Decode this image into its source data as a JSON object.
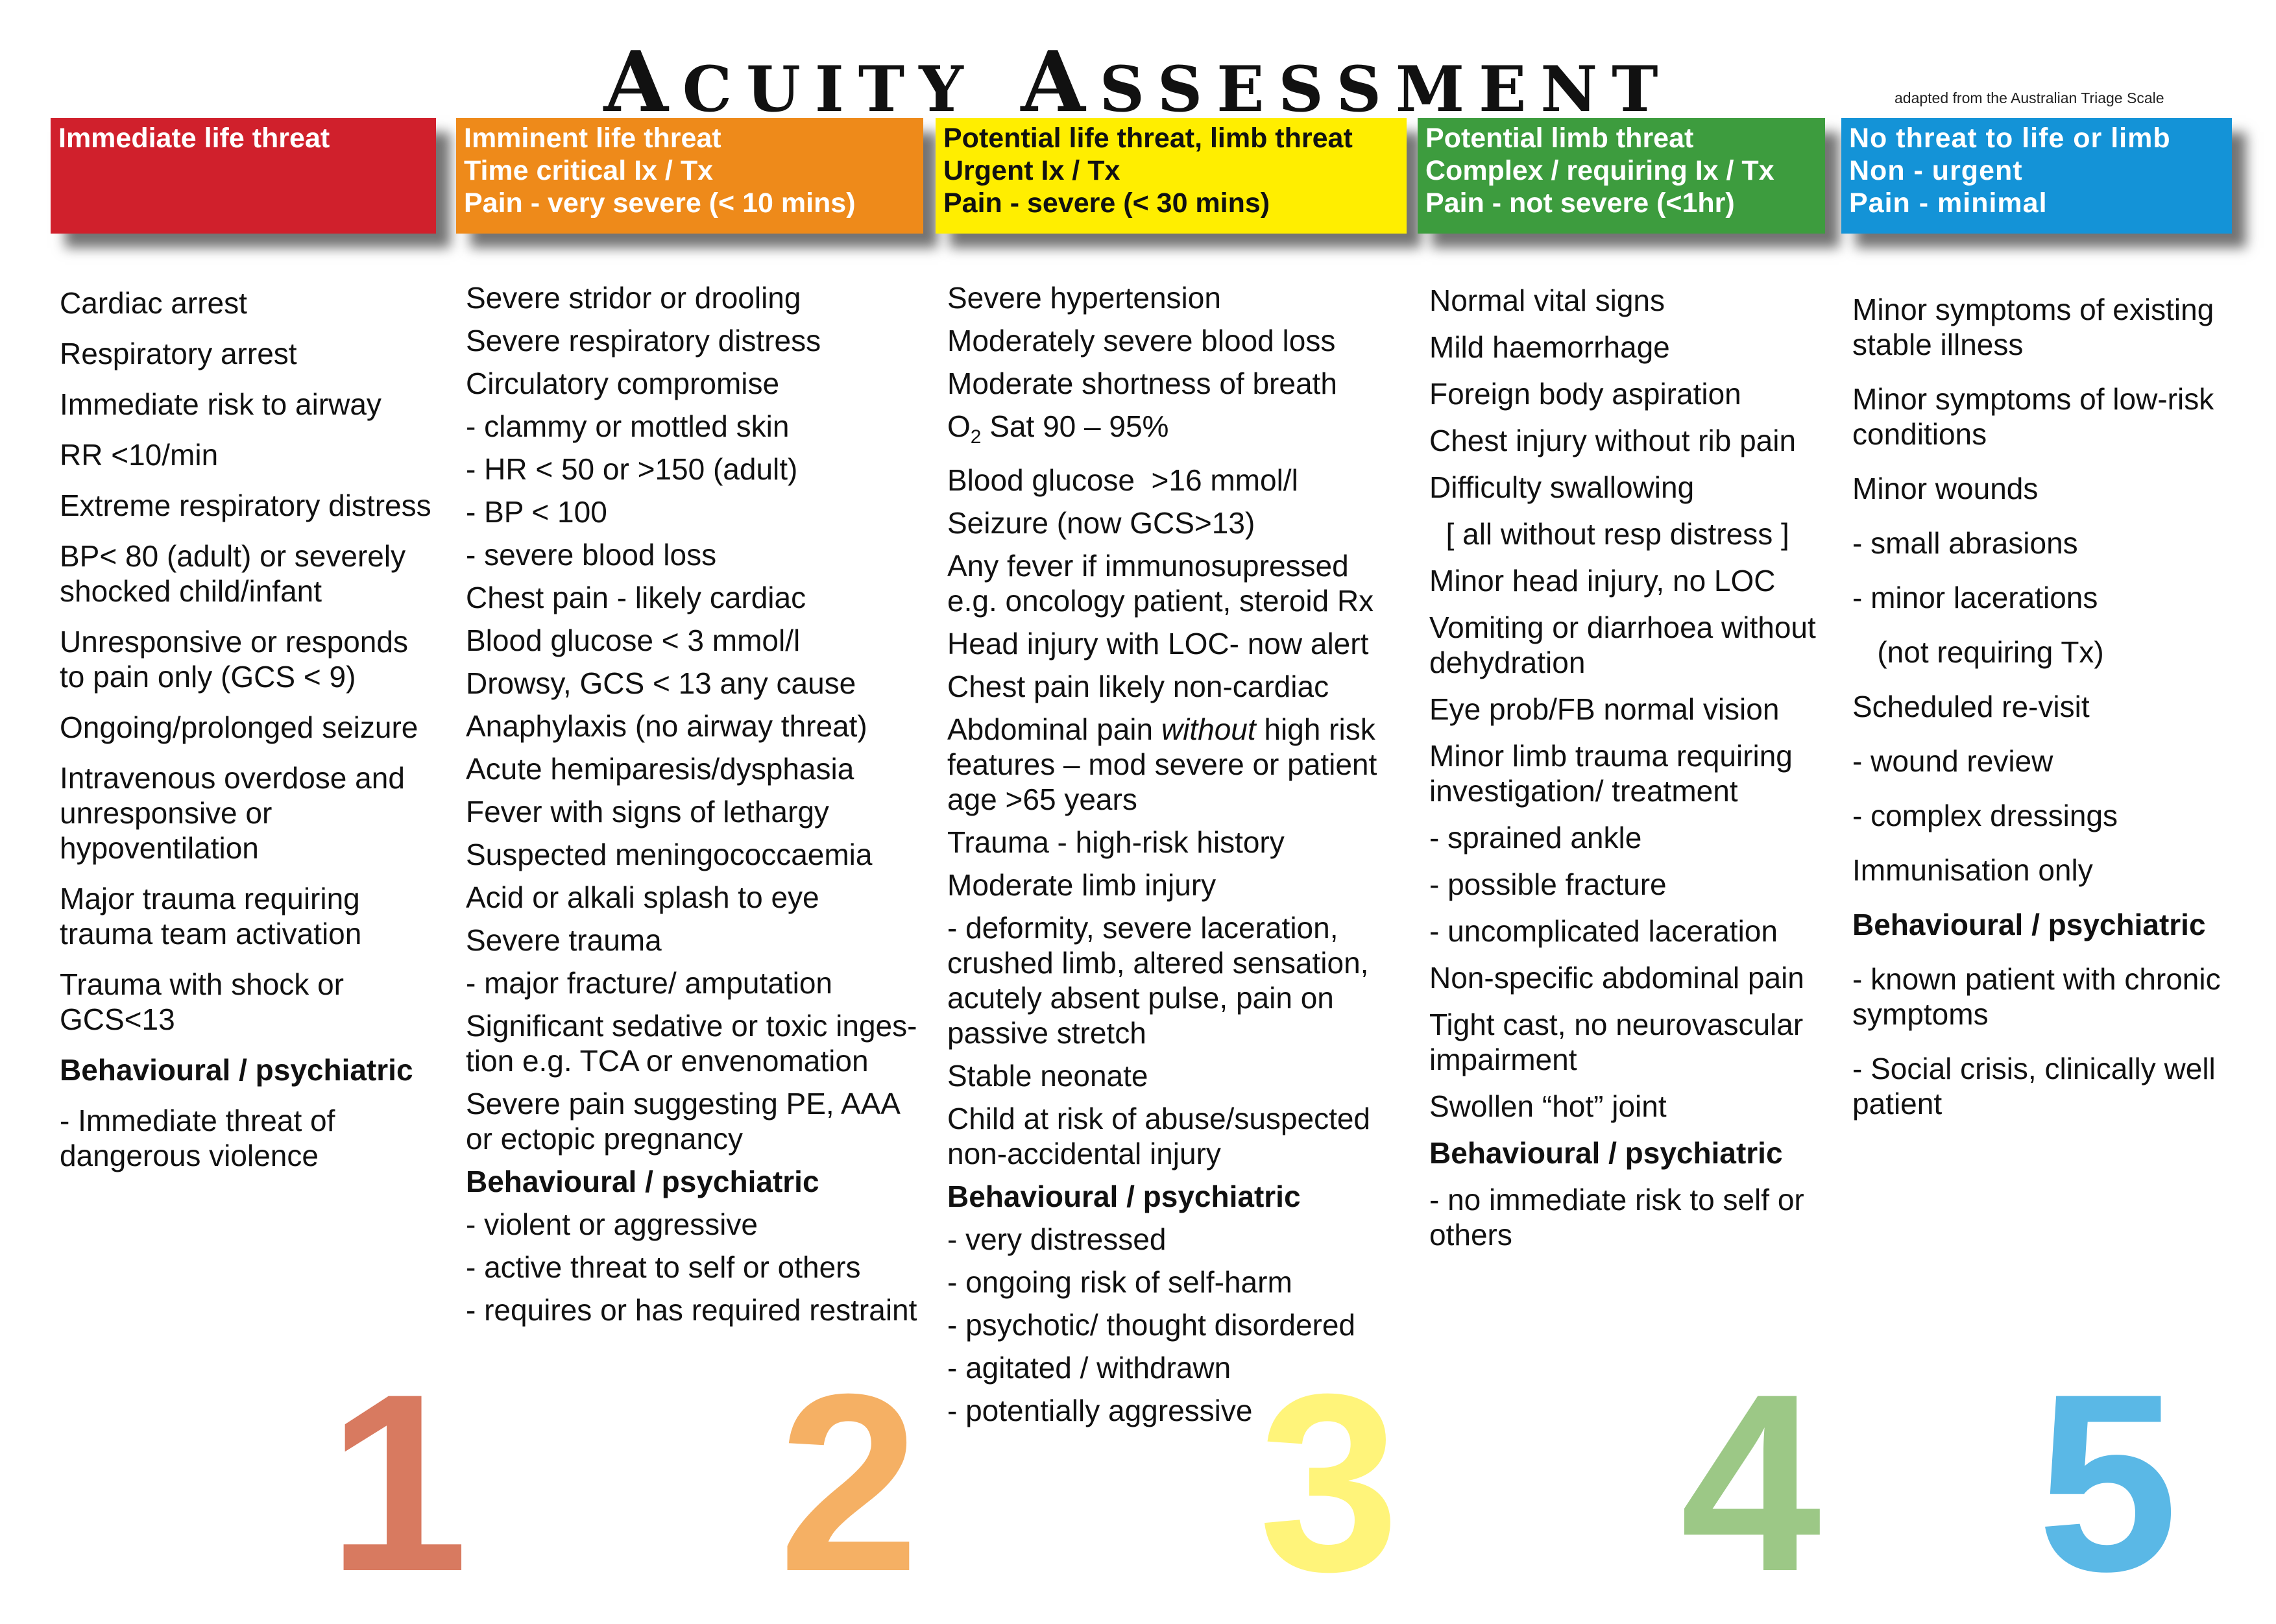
{
  "title": {
    "first_initial": "A",
    "first_rest": "CUITY",
    "second_initial": "A",
    "second_rest": "SSESSMENT"
  },
  "credit": "adapted from the Australian Triage Scale",
  "colors": {
    "cat1": "#d0202c",
    "cat2": "#ee8a1a",
    "cat3": "#ffee00",
    "cat4": "#3d9c3e",
    "cat5": "#1493d7"
  },
  "categories": [
    {
      "number": "1",
      "header": [
        "Immediate life threat"
      ],
      "items": [
        "Cardiac arrest",
        "Respiratory arrest",
        "Immediate risk to airway",
        "RR <10/min",
        "Extreme respiratory distress",
        "BP< 80 (adult) or severely\nshocked child/infant",
        "Unresponsive or responds\nto pain only (GCS < 9)",
        "Ongoing/prolonged seizure",
        "Intravenous overdose and\nunresponsive or\nhypoventilation",
        "Major trauma requiring\ntrauma team activation",
        "Trauma with shock or\nGCS<13",
        "Behavioural / psychiatric",
        "- Immediate threat of\ndangerous violence"
      ]
    },
    {
      "number": "2",
      "header": [
        "Imminent life threat",
        "Time critical Ix / Tx",
        "Pain - very severe (< 10 mins)"
      ],
      "items": [
        "Severe stridor or drooling",
        "Severe respiratory distress",
        "Circulatory compromise",
        "- clammy or mottled skin",
        "- HR < 50 or >150 (adult)",
        "- BP < 100",
        "- severe blood loss",
        "Chest pain - likely cardiac",
        "Blood glucose < 3 mmol/l",
        "Drowsy, GCS < 13 any cause",
        "Anaphylaxis (no airway threat)",
        "Acute hemiparesis/dysphasia",
        "Fever with signs of lethargy",
        "Suspected meningococcaemia",
        "Acid or alkali splash to eye",
        "Severe trauma",
        "- major fracture/ amputation",
        "Significant sedative or toxic inges-\ntion e.g. TCA or envenomation",
        "Severe pain suggesting PE, AAA\nor ectopic pregnancy",
        "Behavioural / psychiatric",
        "- violent or aggressive",
        "- active threat to self or others",
        "- requires or has required restraint"
      ]
    },
    {
      "number": "3",
      "header": [
        "Potential life threat, limb threat",
        "Urgent Ix / Tx",
        "Pain - severe (< 30 mins)"
      ],
      "items": [
        "Severe hypertension",
        "Moderately severe blood loss",
        "Moderate shortness of breath",
        "O2 Sat 90 – 95%",
        "Blood glucose  >16 mmol/l",
        "Seizure (now GCS>13)",
        "Any fever if immunosupressed\ne.g. oncology patient, steroid Rx",
        "Head injury with LOC- now alert",
        "Chest pain likely non-cardiac",
        "Abdominal pain without high risk\nfeatures – mod severe or patient\nage >65 years",
        "Trauma - high-risk history",
        "Moderate limb injury",
        "- deformity, severe laceration,\ncrushed limb, altered sensation,\nacutely absent pulse, pain on\npassive stretch",
        "Stable neonate",
        "Child at risk of abuse/suspected\nnon-accidental injury",
        "Behavioural / psychiatric",
        "- very distressed",
        "- ongoing risk of self-harm",
        "- psychotic/ thought disordered",
        "- agitated / withdrawn",
        "- potentially aggressive"
      ]
    },
    {
      "number": "4",
      "header": [
        "Potential limb threat",
        "Complex / requiring Ix / Tx",
        "Pain - not severe (<1hr)"
      ],
      "items": [
        "Normal vital signs",
        "Mild haemorrhage",
        "Foreign body aspiration",
        "Chest injury without rib pain",
        "Difficulty swallowing",
        "  [ all without resp distress ]",
        "Minor head injury, no LOC",
        "Vomiting or diarrhoea without\ndehydration",
        "Eye prob/FB normal vision",
        "Minor limb trauma requiring\ninvestigation/ treatment",
        "- sprained ankle",
        "- possible fracture",
        "- uncomplicated laceration",
        "Non-specific abdominal pain",
        "Tight cast, no neurovascular\nimpairment",
        "Swollen “hot” joint",
        "Behavioural / psychiatric",
        "- no immediate risk to self or\nothers"
      ]
    },
    {
      "number": "5",
      "header": [
        "No threat to life or limb",
        "Non - urgent",
        "Pain - minimal"
      ],
      "items": [
        "Minor symptoms of existing\nstable illness",
        "Minor symptoms of low-risk\nconditions",
        "Minor wounds",
        "- small abrasions",
        "- minor lacerations",
        "   (not requiring Tx)",
        "Scheduled re-visit",
        "- wound review",
        "- complex dressings",
        "Immunisation only",
        "Behavioural / psychiatric",
        "- known patient with chronic\nsymptoms",
        "- Social crisis, clinically well\npatient"
      ]
    }
  ]
}
